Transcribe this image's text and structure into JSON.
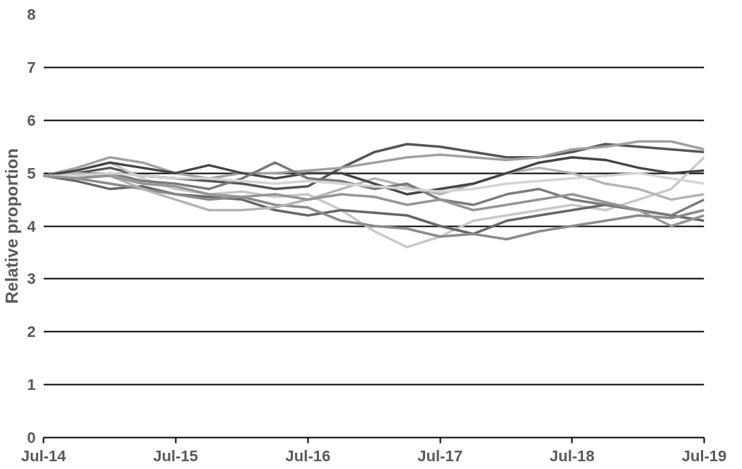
{
  "chart_data": {
    "type": "line",
    "ylabel": "Relative proportion",
    "x": [
      "2014-07",
      "2014-10",
      "2015-01",
      "2015-04",
      "2015-07",
      "2015-10",
      "2016-01",
      "2016-04",
      "2016-07",
      "2016-10",
      "2017-01",
      "2017-04",
      "2017-07",
      "2017-10",
      "2018-01",
      "2018-04",
      "2018-07",
      "2018-10",
      "2019-01",
      "2019-04",
      "2019-07"
    ],
    "xlim": [
      "2014-07",
      "2019-07"
    ],
    "xticks": [
      {
        "value": "2014-07",
        "label": "Jul-14"
      },
      {
        "value": "2015-07",
        "label": "Jul-15"
      },
      {
        "value": "2016-07",
        "label": "Jul-16"
      },
      {
        "value": "2017-07",
        "label": "Jul-17"
      },
      {
        "value": "2018-07",
        "label": "Jul-18"
      },
      {
        "value": "2019-07",
        "label": "Jul-19"
      }
    ],
    "ylim": [
      0,
      8
    ],
    "yticks": [
      0,
      1,
      2,
      3,
      4,
      5,
      6,
      7,
      8
    ],
    "grid": "y",
    "marker": "none",
    "line_style": "solid",
    "series": [
      {
        "color": "#555555",
        "values": [
          4.95,
          5.0,
          5.1,
          4.95,
          4.9,
          4.85,
          4.8,
          4.7,
          4.75,
          5.1,
          5.4,
          5.55,
          5.5,
          5.4,
          5.3,
          5.3,
          5.4,
          5.55,
          5.5,
          5.45,
          5.4
        ]
      },
      {
        "color": "#c8c8c8",
        "values": [
          4.95,
          5.05,
          5.2,
          4.9,
          4.7,
          4.6,
          4.65,
          4.55,
          4.6,
          4.3,
          3.9,
          3.6,
          3.8,
          4.1,
          4.2,
          4.3,
          4.4,
          4.3,
          4.5,
          4.7,
          5.3
        ]
      },
      {
        "color": "#a0a0a0",
        "values": [
          4.95,
          5.1,
          5.3,
          5.2,
          5.0,
          4.9,
          5.0,
          5.0,
          5.05,
          5.1,
          5.2,
          5.3,
          5.35,
          5.3,
          5.25,
          5.3,
          5.45,
          5.5,
          5.6,
          5.6,
          5.45
        ]
      },
      {
        "color": "#666666",
        "values": [
          4.95,
          4.85,
          4.7,
          4.75,
          4.6,
          4.55,
          4.5,
          4.3,
          4.2,
          4.3,
          4.25,
          4.2,
          4.0,
          3.85,
          4.1,
          4.2,
          4.3,
          4.4,
          4.3,
          4.2,
          4.1
        ]
      },
      {
        "color": "#8a8a8a",
        "values": [
          4.95,
          4.9,
          4.8,
          4.7,
          4.6,
          4.5,
          4.55,
          4.4,
          4.35,
          4.1,
          4.0,
          3.95,
          3.8,
          3.85,
          3.75,
          3.9,
          4.0,
          4.1,
          4.2,
          4.15,
          4.3
        ]
      },
      {
        "color": "#b4b4b4",
        "values": [
          4.95,
          5.0,
          4.95,
          4.7,
          4.5,
          4.3,
          4.3,
          4.35,
          4.5,
          4.7,
          4.9,
          4.75,
          4.6,
          4.8,
          5.0,
          5.1,
          5.0,
          4.8,
          4.7,
          4.5,
          4.6
        ]
      },
      {
        "color": "#444444",
        "values": [
          4.95,
          5.05,
          5.2,
          5.1,
          5.0,
          5.15,
          5.0,
          4.9,
          5.0,
          5.0,
          4.8,
          4.6,
          4.7,
          4.8,
          5.0,
          5.2,
          5.3,
          5.25,
          5.1,
          5.0,
          5.05
        ]
      },
      {
        "color": "#7a7a7a",
        "values": [
          4.95,
          4.9,
          5.0,
          4.85,
          4.8,
          4.7,
          4.9,
          5.2,
          4.9,
          4.85,
          4.7,
          4.8,
          4.5,
          4.4,
          4.6,
          4.7,
          4.5,
          4.4,
          4.3,
          4.2,
          4.5
        ]
      },
      {
        "color": "#d4d4d4",
        "values": [
          4.95,
          4.95,
          5.0,
          4.95,
          4.9,
          4.9,
          4.85,
          4.8,
          4.85,
          4.8,
          4.75,
          4.7,
          4.65,
          4.7,
          4.8,
          4.85,
          4.9,
          4.95,
          5.0,
          4.9,
          4.8
        ]
      },
      {
        "color": "#959595",
        "values": [
          4.95,
          4.9,
          4.95,
          4.8,
          4.75,
          4.6,
          4.55,
          4.6,
          4.5,
          4.6,
          4.55,
          4.4,
          4.5,
          4.3,
          4.4,
          4.5,
          4.6,
          4.45,
          4.3,
          4.0,
          4.2
        ]
      }
    ]
  }
}
